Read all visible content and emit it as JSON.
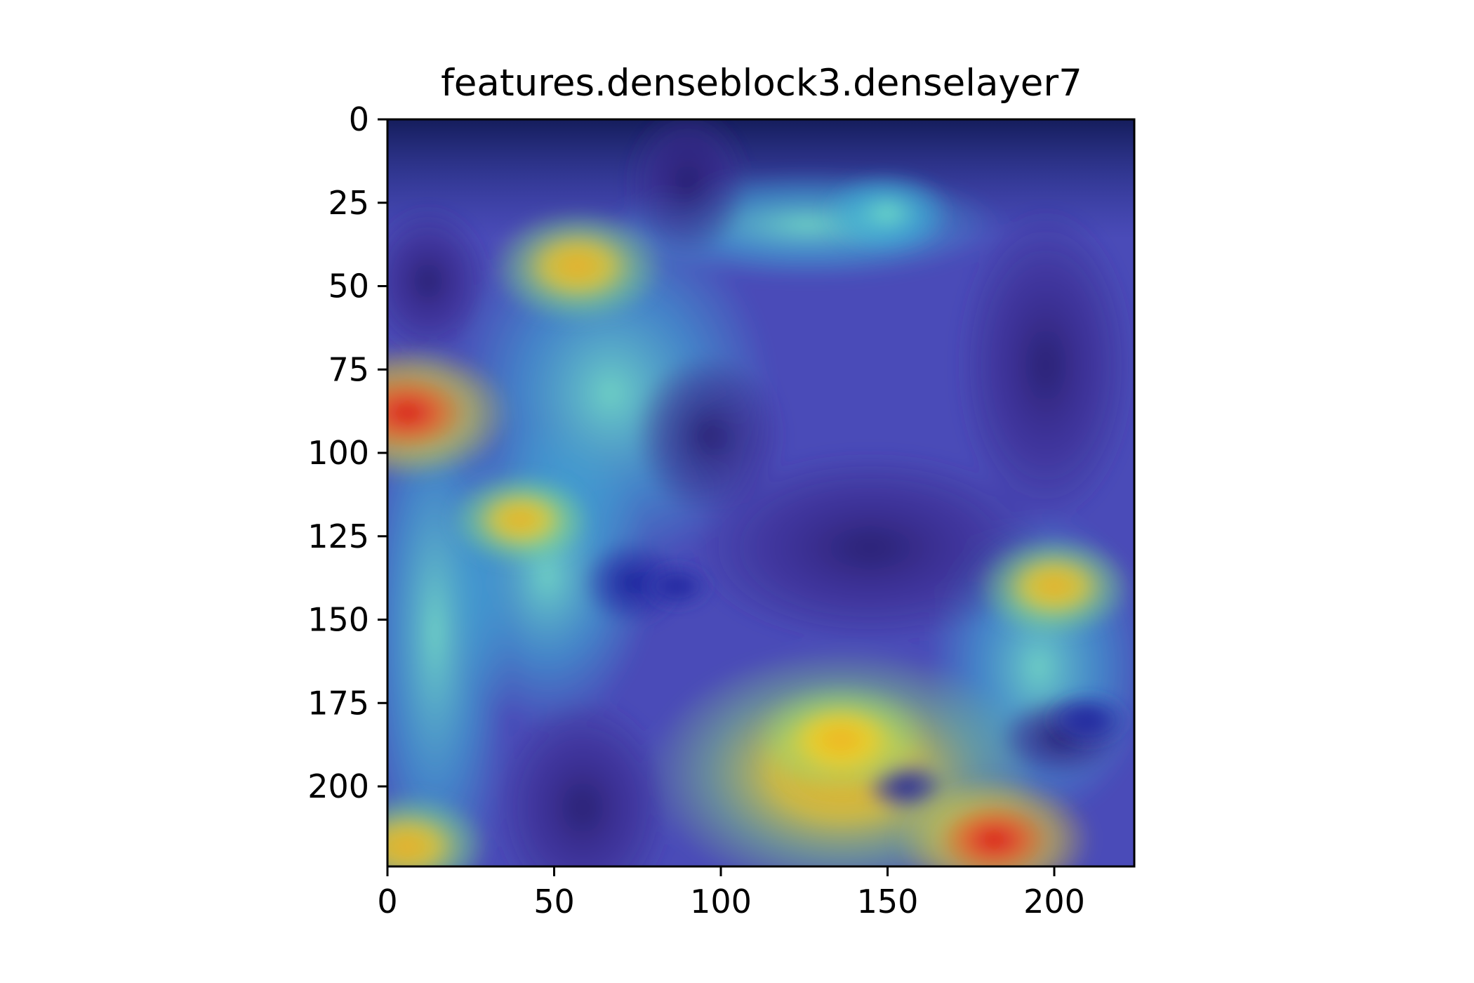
{
  "chart_data": {
    "type": "heatmap",
    "title": "features.denseblock3.denselayer7",
    "xlabel": "",
    "ylabel": "",
    "description_layer": "Grad-CAM style activation overlay on an image of a bear",
    "xlim": [
      0,
      224
    ],
    "ylim": [
      224,
      0
    ],
    "x_ticks": [
      0,
      50,
      100,
      150,
      200
    ],
    "y_ticks": [
      0,
      25,
      50,
      75,
      100,
      125,
      150,
      175,
      200
    ],
    "colormap": "jet",
    "grid": false,
    "legend": "none",
    "hotspots": [
      {
        "x": 6,
        "y": 88,
        "intensity": 1.0
      },
      {
        "x": 57,
        "y": 44,
        "intensity": 0.78
      },
      {
        "x": 182,
        "y": 216,
        "intensity": 0.92
      },
      {
        "x": 136,
        "y": 186,
        "intensity": 0.75
      },
      {
        "x": 200,
        "y": 140,
        "intensity": 0.65
      },
      {
        "x": 6,
        "y": 218,
        "intensity": 0.7
      },
      {
        "x": 40,
        "y": 120,
        "intensity": 0.55
      },
      {
        "x": 150,
        "y": 28,
        "intensity": 0.45
      },
      {
        "x": 210,
        "y": 180,
        "intensity": 0.15
      },
      {
        "x": 87,
        "y": 140,
        "intensity": 0.05
      }
    ]
  }
}
